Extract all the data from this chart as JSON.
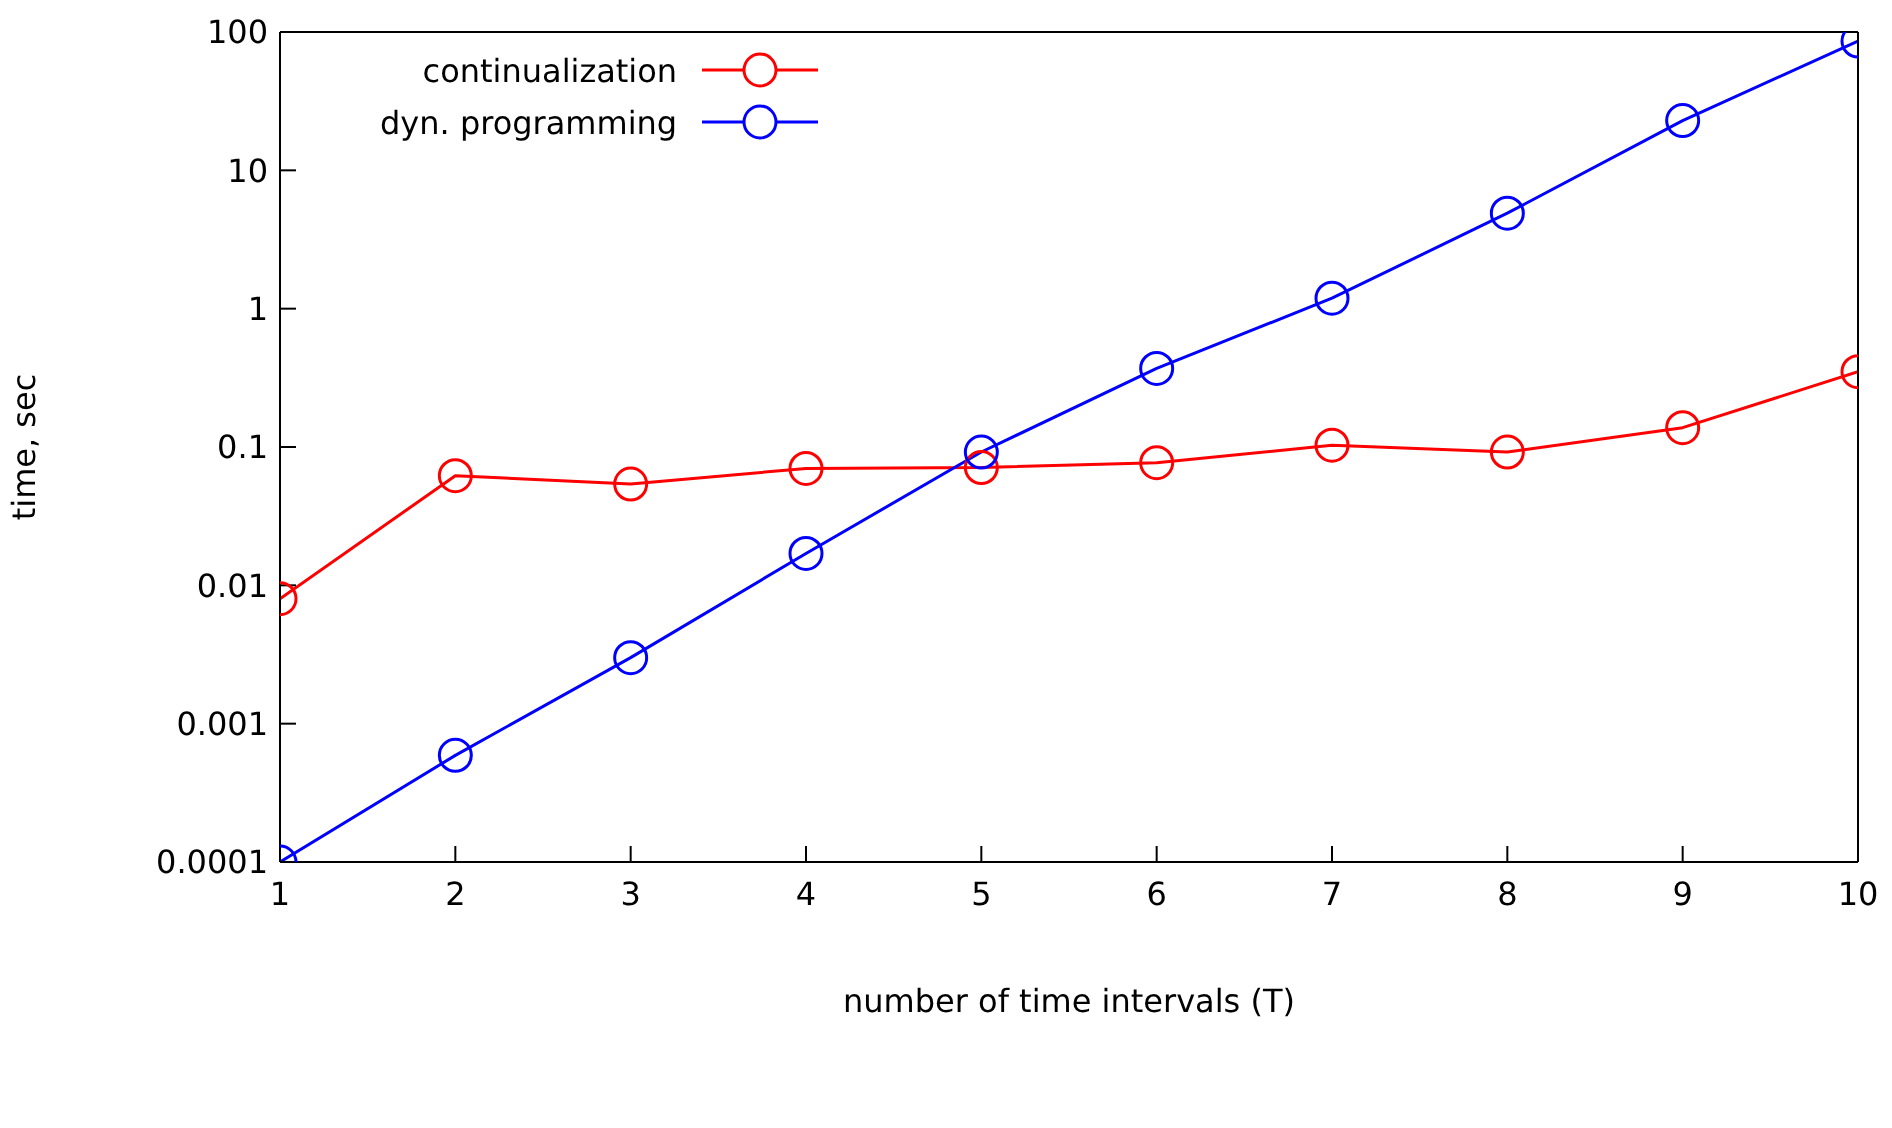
{
  "chart_data": {
    "type": "line",
    "xlabel": "number of time intervals (T)",
    "ylabel": "time, sec",
    "x": [
      1,
      2,
      3,
      4,
      5,
      6,
      7,
      8,
      9,
      10
    ],
    "series": [
      {
        "name": "continualization",
        "color": "#ff0000",
        "values": [
          0.008,
          0.062,
          0.054,
          0.07,
          0.071,
          0.077,
          0.103,
          0.092,
          0.138,
          0.35
        ]
      },
      {
        "name": "dyn. programming",
        "color": "#0000ff",
        "values": [
          0.0001,
          0.00059,
          0.003,
          0.017,
          0.092,
          0.37,
          1.19,
          4.9,
          22.9,
          86
        ]
      }
    ],
    "xlim": [
      1,
      10
    ],
    "xticks": [
      1,
      2,
      3,
      4,
      5,
      6,
      7,
      8,
      9,
      10
    ],
    "ylim": [
      0.0001,
      100
    ],
    "yticks": [
      0.0001,
      0.001,
      0.01,
      0.1,
      1,
      10,
      100
    ],
    "log": "y",
    "grid": false,
    "legend": "top left",
    "marker": "circle",
    "line_style": "solid"
  }
}
